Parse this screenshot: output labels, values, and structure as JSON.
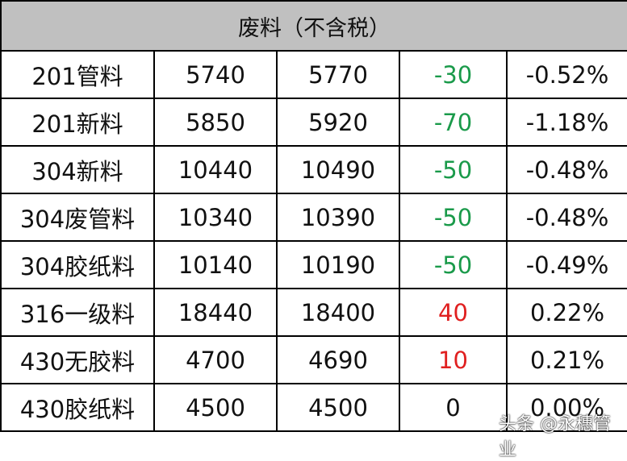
{
  "title": "废料（不含税）",
  "colors": {
    "down": "#1a9a4a",
    "up": "#e02020",
    "header_bg": "#c0c0c0"
  },
  "rows": [
    {
      "name": "201管料",
      "today": "5740",
      "prev": "5770",
      "change": "-30",
      "pct": "-0.52%",
      "dir": "down"
    },
    {
      "name": "201新料",
      "today": "5850",
      "prev": "5920",
      "change": "-70",
      "pct": "-1.18%",
      "dir": "down"
    },
    {
      "name": "304新料",
      "today": "10440",
      "prev": "10490",
      "change": "-50",
      "pct": "-0.48%",
      "dir": "down"
    },
    {
      "name": "304废管料",
      "today": "10340",
      "prev": "10390",
      "change": "-50",
      "pct": "-0.48%",
      "dir": "down"
    },
    {
      "name": "304胶纸料",
      "today": "10140",
      "prev": "10190",
      "change": "-50",
      "pct": "-0.49%",
      "dir": "down"
    },
    {
      "name": "316一级料",
      "today": "18440",
      "prev": "18400",
      "change": "40",
      "pct": "0.22%",
      "dir": "up"
    },
    {
      "name": "430无胶料",
      "today": "4700",
      "prev": "4690",
      "change": "10",
      "pct": "0.21%",
      "dir": "up"
    },
    {
      "name": "430胶纸料",
      "today": "4500",
      "prev": "4500",
      "change": "0",
      "pct": "0.00%",
      "dir": "flat"
    }
  ],
  "watermark": "头条 @永穗管业"
}
